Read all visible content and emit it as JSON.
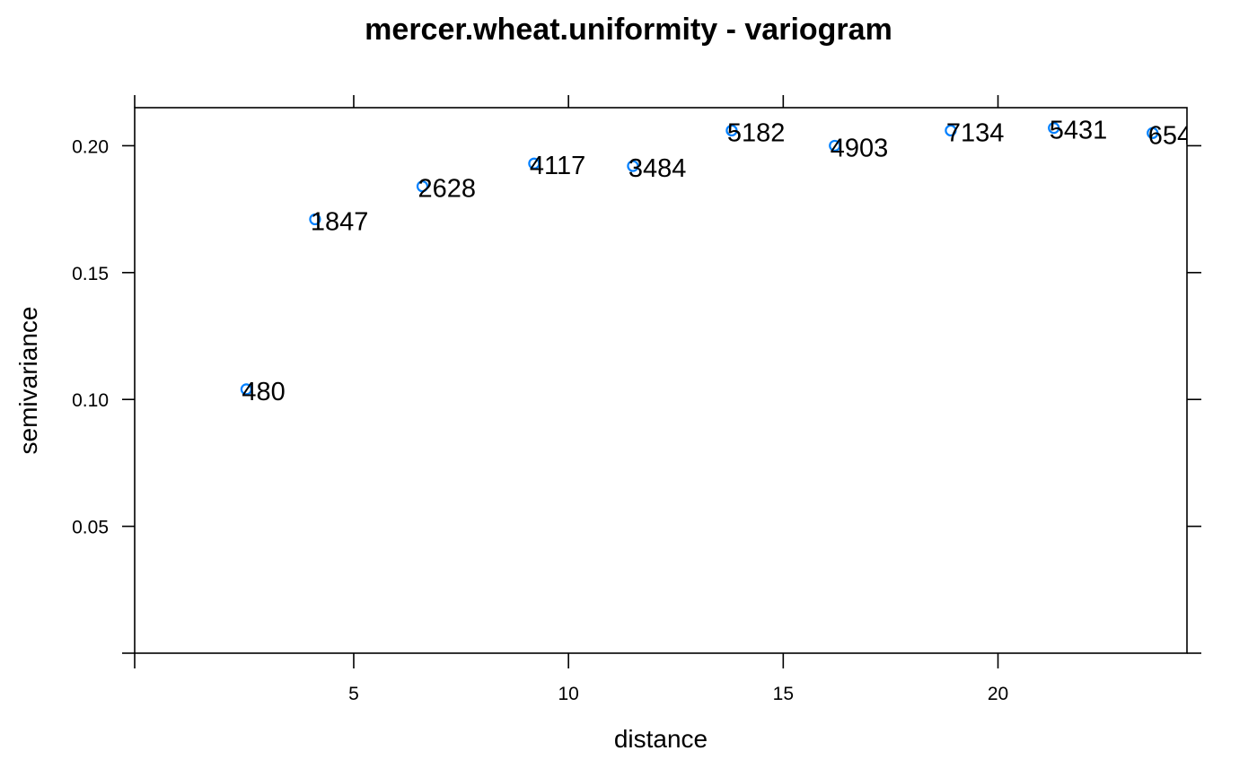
{
  "chart_data": {
    "type": "scatter",
    "title": "mercer.wheat.uniformity - variogram",
    "xlabel": "distance",
    "ylabel": "semivariance",
    "xlim": [
      -0.1,
      24.4
    ],
    "ylim": [
      0,
      0.215
    ],
    "x_ticks": [
      5,
      10,
      15,
      20
    ],
    "x_tick_labels": [
      "5",
      "10",
      "15",
      "20"
    ],
    "y_ticks": [
      0.05,
      0.1,
      0.15,
      0.2
    ],
    "y_tick_labels": [
      "0.05",
      "0.10",
      "0.15",
      "0.20"
    ],
    "grid": false,
    "point_color": "#0080ff",
    "points": [
      {
        "x": 2.5,
        "y": 0.104,
        "label": "480"
      },
      {
        "x": 4.1,
        "y": 0.171,
        "label": "1847"
      },
      {
        "x": 6.6,
        "y": 0.184,
        "label": "2628"
      },
      {
        "x": 9.2,
        "y": 0.193,
        "label": "4117"
      },
      {
        "x": 11.5,
        "y": 0.192,
        "label": "3484"
      },
      {
        "x": 13.8,
        "y": 0.206,
        "label": "5182"
      },
      {
        "x": 16.2,
        "y": 0.2,
        "label": "4903"
      },
      {
        "x": 18.9,
        "y": 0.206,
        "label": "7134"
      },
      {
        "x": 21.3,
        "y": 0.207,
        "label": "5431"
      },
      {
        "x": 23.6,
        "y": 0.205,
        "label": "654"
      }
    ]
  }
}
